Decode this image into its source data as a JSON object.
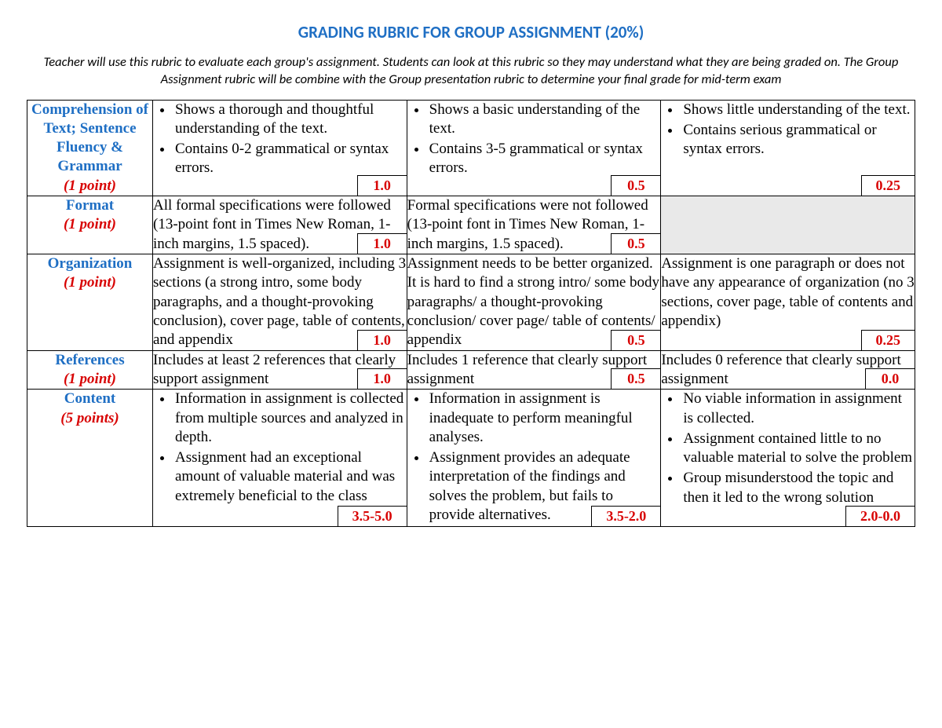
{
  "title": "GRADING RUBRIC FOR GROUP ASSIGNMENT (20%)",
  "subtitle": "Teacher will use this rubric to evaluate each group's assignment. Students can look at this rubric so they may understand what they are being graded on. The Group Assignment rubric will be combine with the Group presentation rubric to determine your final grade for mid-term exam",
  "colors": {
    "heading_blue": "#1f6fc4",
    "score_red": "#d80404",
    "grey_fill": "#e9e9e9",
    "border": "#000000"
  },
  "rows": [
    {
      "cat_name": "Comprehension of Text; Sentence Fluency & Grammar",
      "cat_points": "(1 point)",
      "c1": {
        "bullets": [
          "Shows a thorough and thoughtful understanding of the text.",
          "Contains 0-2 grammatical or syntax errors."
        ],
        "score": "1.0"
      },
      "c2": {
        "bullets": [
          "Shows a basic understanding of the text.",
          "Contains 3-5 grammatical or syntax errors."
        ],
        "score": "0.5"
      },
      "c3": {
        "bullets": [
          "Shows little understanding of the text.",
          "Contains serious grammatical or syntax errors."
        ],
        "score": "0.25"
      }
    },
    {
      "cat_name": "Format",
      "cat_points": "(1 point)",
      "c1": {
        "text": "All formal specifications were followed (13-point font in Times New Roman, 1-inch margins, 1.5 spaced).",
        "score": "1.0"
      },
      "c2": {
        "text": "Formal specifications were not followed (13-point font in Times New Roman, 1-inch margins, 1.5 spaced).",
        "score": "0.5"
      },
      "c3": {
        "grey": true
      }
    },
    {
      "cat_name": "Organization",
      "cat_points": "(1 point)",
      "c1": {
        "text": "Assignment is well-organized, including 3 sections (a strong intro, some body paragraphs, and a thought-provoking conclusion), cover page, table of contents, and appendix",
        "score": "1.0"
      },
      "c2": {
        "text": "Assignment needs to be better organized. It is hard to find a strong intro/ some body paragraphs/ a thought-provoking conclusion/ cover page/ table of contents/ appendix",
        "score": "0.5"
      },
      "c3": {
        "text": "Assignment is one paragraph or does not have any appearance of organization (no 3 sections, cover page, table of contents and appendix)",
        "score": "0.25"
      }
    },
    {
      "cat_name": "References",
      "cat_points": "(1 point)",
      "c1": {
        "text": "Includes at least 2 references that clearly support assignment",
        "score": "1.0"
      },
      "c2": {
        "text": "Includes 1 reference that clearly support assignment",
        "score": "0.5"
      },
      "c3": {
        "text": "Includes 0 reference that clearly support assignment",
        "score": "0.0"
      }
    },
    {
      "cat_name": "Content",
      "cat_points": "(5 points)",
      "c1": {
        "bullets": [
          "Information in assignment is collected from multiple sources and analyzed in depth.",
          "Assignment had an exceptional amount of valuable material and was extremely beneficial to the class"
        ],
        "score": "3.5-5.0"
      },
      "c2": {
        "bullets": [
          "Information in assignment is inadequate to perform meaningful analyses.",
          "Assignment provides an adequate interpretation of the findings and solves the problem, but fails to provide alternatives."
        ],
        "score": "3.5-2.0"
      },
      "c3": {
        "bullets": [
          "No viable information in assignment is collected.",
          "Assignment contained little to no valuable material to solve the problem",
          "Group misunderstood the topic and then it led to the wrong solution"
        ],
        "score": "2.0-0.0"
      }
    }
  ]
}
